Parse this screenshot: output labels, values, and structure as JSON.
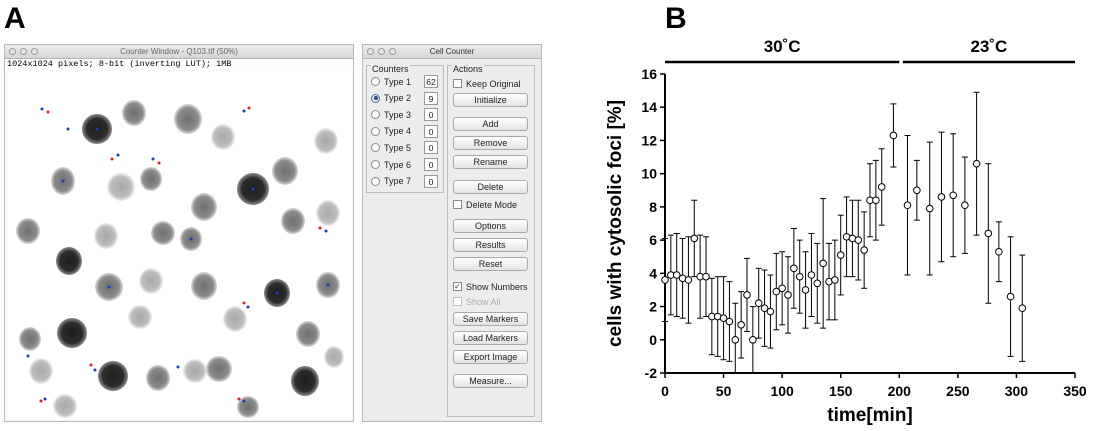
{
  "panels": {
    "a": "A",
    "b": "B"
  },
  "counter_window": {
    "title": "Counter Window - Q103.tif (50%)",
    "info": "1024x1024 pixels; 8-bit (inverting LUT); 1MB"
  },
  "cell_counter": {
    "title": "Cell Counter",
    "counters_title": "Counters",
    "actions_title": "Actions",
    "counters": [
      {
        "label": "Type 1",
        "count": "62",
        "selected": false
      },
      {
        "label": "Type 2",
        "count": "9",
        "selected": true
      },
      {
        "label": "Type 3",
        "count": "0",
        "selected": false
      },
      {
        "label": "Type 4",
        "count": "0",
        "selected": false
      },
      {
        "label": "Type 5",
        "count": "0",
        "selected": false
      },
      {
        "label": "Type 6",
        "count": "0",
        "selected": false
      },
      {
        "label": "Type 7",
        "count": "0",
        "selected": false
      }
    ],
    "keep_original": "Keep Original",
    "initialize": "Initialize",
    "add": "Add",
    "remove": "Remove",
    "rename": "Rename",
    "delete": "Delete",
    "delete_mode": "Delete Mode",
    "options": "Options",
    "results": "Results",
    "reset": "Reset",
    "show_numbers": "Show Numbers",
    "show_all": "Show All",
    "save_markers": "Save Markers",
    "load_markers": "Load Markers",
    "export_image": "Export Image",
    "measure": "Measure..."
  },
  "chart_data": {
    "type": "scatter",
    "title": "",
    "xlabel": "time[min]",
    "ylabel": "cells with cytosolic foci [%]",
    "xlim": [
      0,
      350
    ],
    "ylim": [
      -2,
      16
    ],
    "xticks": [
      "0",
      "50",
      "100",
      "150",
      "200",
      "250",
      "300",
      "350"
    ],
    "yticks": [
      "-2",
      "0",
      "2",
      "4",
      "6",
      "8",
      "10",
      "12",
      "14",
      "16"
    ],
    "segments": [
      {
        "label": "30˚C",
        "from": 0,
        "to": 200
      },
      {
        "label": "23˚C",
        "from": 203,
        "to": 350
      }
    ],
    "points": [
      {
        "x": 0,
        "y": 3.6,
        "err": 2.5
      },
      {
        "x": 5,
        "y": 3.9,
        "err": 2.4
      },
      {
        "x": 10,
        "y": 3.9,
        "err": 2.5
      },
      {
        "x": 15,
        "y": 3.7,
        "err": 2.4
      },
      {
        "x": 20,
        "y": 3.6,
        "err": 2.6
      },
      {
        "x": 25,
        "y": 6.1,
        "err": 2.3
      },
      {
        "x": 30,
        "y": 3.8,
        "err": 2.5
      },
      {
        "x": 35,
        "y": 3.8,
        "err": 2.4
      },
      {
        "x": 40,
        "y": 1.4,
        "err": 2.3
      },
      {
        "x": 45,
        "y": 1.4,
        "err": 2.4
      },
      {
        "x": 50,
        "y": 1.3,
        "err": 2.5
      },
      {
        "x": 55,
        "y": 1.1,
        "err": 2.4
      },
      {
        "x": 60,
        "y": 0.0,
        "err": 2.2
      },
      {
        "x": 65,
        "y": 0.9,
        "err": 2.0
      },
      {
        "x": 70,
        "y": 2.7,
        "err": 2.2
      },
      {
        "x": 75,
        "y": 0.0,
        "err": 2.0
      },
      {
        "x": 80,
        "y": 2.2,
        "err": 2.1
      },
      {
        "x": 85,
        "y": 1.9,
        "err": 2.3
      },
      {
        "x": 90,
        "y": 1.7,
        "err": 2.2
      },
      {
        "x": 95,
        "y": 2.9,
        "err": 2.3
      },
      {
        "x": 100,
        "y": 3.1,
        "err": 2.2
      },
      {
        "x": 105,
        "y": 2.7,
        "err": 2.3
      },
      {
        "x": 110,
        "y": 4.3,
        "err": 2.4
      },
      {
        "x": 115,
        "y": 3.8,
        "err": 2.2
      },
      {
        "x": 120,
        "y": 3.0,
        "err": 2.3
      },
      {
        "x": 125,
        "y": 3.9,
        "err": 2.5
      },
      {
        "x": 130,
        "y": 3.4,
        "err": 2.4
      },
      {
        "x": 135,
        "y": 4.6,
        "err": 3.9
      },
      {
        "x": 140,
        "y": 3.5,
        "err": 2.3
      },
      {
        "x": 145,
        "y": 3.6,
        "err": 2.4
      },
      {
        "x": 150,
        "y": 5.1,
        "err": 2.4
      },
      {
        "x": 155,
        "y": 6.2,
        "err": 2.4
      },
      {
        "x": 160,
        "y": 6.1,
        "err": 2.3
      },
      {
        "x": 165,
        "y": 6.0,
        "err": 2.4
      },
      {
        "x": 170,
        "y": 5.4,
        "err": 2.3
      },
      {
        "x": 175,
        "y": 8.4,
        "err": 2.2
      },
      {
        "x": 180,
        "y": 8.4,
        "err": 2.4
      },
      {
        "x": 185,
        "y": 9.2,
        "err": 2.3
      },
      {
        "x": 195,
        "y": 12.3,
        "err": 1.9
      },
      {
        "x": 207,
        "y": 8.1,
        "err": 4.2
      },
      {
        "x": 215,
        "y": 9.0,
        "err": 1.8
      },
      {
        "x": 226,
        "y": 7.9,
        "err": 4.0
      },
      {
        "x": 236,
        "y": 8.6,
        "err": 3.9
      },
      {
        "x": 246,
        "y": 8.7,
        "err": 3.7
      },
      {
        "x": 256,
        "y": 8.1,
        "err": 2.9
      },
      {
        "x": 266,
        "y": 10.6,
        "err": 4.3
      },
      {
        "x": 276,
        "y": 6.4,
        "err": 4.2
      },
      {
        "x": 285,
        "y": 5.3,
        "err": 1.8
      },
      {
        "x": 295,
        "y": 2.6,
        "err": 3.6
      },
      {
        "x": 305,
        "y": 1.9,
        "err": 3.2
      }
    ]
  }
}
